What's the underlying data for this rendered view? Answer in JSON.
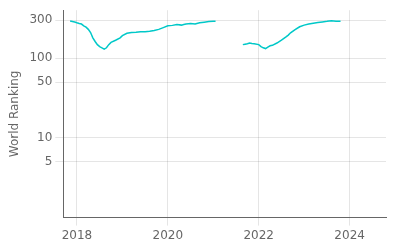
{
  "chart_data": {
    "type": "line",
    "ylabel": "World Ranking",
    "color": "#00c8c8",
    "log": "y",
    "grid": true,
    "xlim": [
      2017.7,
      2024.8
    ],
    "ylim": [
      1,
      400
    ],
    "xticks": [
      2018,
      2020,
      2022,
      2024
    ],
    "yticks": [
      5,
      10,
      50,
      100,
      300
    ],
    "series": [
      {
        "x": [
          2017.85,
          2017.95,
          2018.0,
          2018.05,
          2018.1,
          2018.15,
          2018.2,
          2018.25,
          2018.3,
          2018.35,
          2018.4,
          2018.45,
          2018.5,
          2018.55,
          2018.6,
          2018.65,
          2018.7,
          2018.75,
          2018.85,
          2018.95,
          2019.0,
          2019.1,
          2019.2,
          2019.3,
          2019.4,
          2019.5,
          2019.6,
          2019.7,
          2019.8,
          2019.9,
          2020.0,
          2020.1,
          2020.2,
          2020.3,
          2020.35,
          2020.4,
          2020.5,
          2020.6,
          2020.7,
          2020.8,
          2020.9,
          2021.0,
          2021.05
        ],
        "values": [
          293,
          285,
          278,
          272,
          268,
          255,
          245,
          230,
          210,
          180,
          162,
          148,
          140,
          135,
          130,
          135,
          148,
          158,
          168,
          180,
          192,
          205,
          210,
          212,
          215,
          215,
          218,
          222,
          230,
          242,
          255,
          258,
          265,
          260,
          265,
          268,
          272,
          268,
          278,
          283,
          288,
          290,
          290
        ]
      },
      {
        "x": [
          2021.65,
          2021.7,
          2021.75,
          2021.8,
          2021.85,
          2021.9,
          2022.0,
          2022.05,
          2022.1,
          2022.15,
          2022.2,
          2022.25,
          2022.3,
          2022.4,
          2022.5,
          2022.6,
          2022.65,
          2022.7,
          2022.8,
          2022.9,
          2023.0,
          2023.1,
          2023.2,
          2023.3,
          2023.4,
          2023.5,
          2023.55,
          2023.6,
          2023.65,
          2023.7,
          2023.75,
          2023.8
        ],
        "values": [
          148,
          150,
          152,
          155,
          153,
          152,
          148,
          140,
          135,
          132,
          138,
          143,
          145,
          155,
          168,
          185,
          195,
          208,
          228,
          248,
          260,
          268,
          275,
          280,
          285,
          290,
          293,
          295,
          293,
          291,
          290,
          290
        ]
      }
    ]
  }
}
